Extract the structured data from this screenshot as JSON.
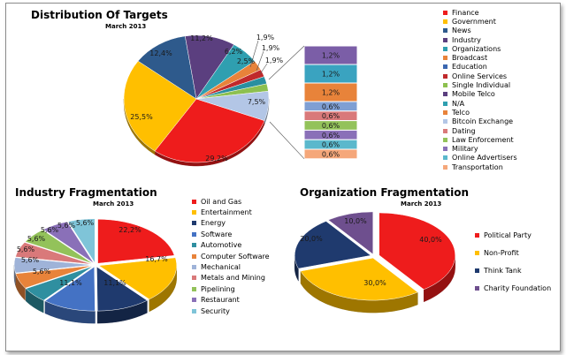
{
  "colors": {
    "red": "#ee1c1c",
    "gold": "#ffbf00",
    "navy": "#1f3a6e",
    "steel": "#4472c4",
    "teal": "#2f9fb0",
    "orange": "#e8833a",
    "lightblue": "#b3c6e6",
    "rose": "#d9797a",
    "green": "#93c25a",
    "purple": "#6e4f8e",
    "sky": "#7fc4d8",
    "blue": "#3b67b0",
    "peach": "#f5a77a"
  },
  "chart_data": [
    {
      "type": "pie",
      "title": "Distribution Of Targets",
      "subtitle": "March 2013",
      "slices": [
        {
          "label": "29,2%",
          "value": 29.2,
          "color": "#ee1c1c"
        },
        {
          "label": "25,5%",
          "value": 25.5,
          "color": "#ffbf00"
        },
        {
          "label": "12,4%",
          "value": 12.4,
          "color": "#2e5a8c"
        },
        {
          "label": "11,2%",
          "value": 11.2,
          "color": "#5b3f7f"
        },
        {
          "label": "6,2%",
          "value": 6.2,
          "color": "#2f9fb0"
        },
        {
          "label": "2,5%",
          "value": 2.5,
          "color": "#e8833a"
        },
        {
          "label": "1,9%",
          "value": 1.9,
          "color": "#c0292b"
        },
        {
          "label": "1,9%",
          "value": 1.9,
          "color": "#2a8fa0"
        },
        {
          "label": "1,9%",
          "value": 1.9,
          "color": "#8dc04f"
        },
        {
          "label": "7,5%",
          "value": 7.5,
          "color": "#b3c6e6"
        }
      ],
      "bar_of_pie": [
        {
          "label": "1,2%",
          "value": 1.2,
          "color": "#7b5ea7"
        },
        {
          "label": "1,2%",
          "value": 1.2,
          "color": "#3aa3c0"
        },
        {
          "label": "1,2%",
          "value": 1.2,
          "color": "#e8833a"
        },
        {
          "label": "0,6%",
          "value": 0.6,
          "color": "#7f9fd3"
        },
        {
          "label": "0,6%",
          "value": 0.6,
          "color": "#d9797a"
        },
        {
          "label": "0,6%",
          "value": 0.6,
          "color": "#93c25a"
        },
        {
          "label": "0,6%",
          "value": 0.6,
          "color": "#8a70b8"
        },
        {
          "label": "0,6%",
          "value": 0.6,
          "color": "#5bb8cc"
        },
        {
          "label": "0,6%",
          "value": 0.6,
          "color": "#f5a77a"
        }
      ],
      "legend": [
        {
          "label": "Finance",
          "color": "#ee1c1c"
        },
        {
          "label": "Government",
          "color": "#ffbf00"
        },
        {
          "label": "News",
          "color": "#2e5a8c"
        },
        {
          "label": "Industry",
          "color": "#5b3f7f"
        },
        {
          "label": "Organizations",
          "color": "#2f9fb0"
        },
        {
          "label": "Broadcast",
          "color": "#e8833a"
        },
        {
          "label": "Education",
          "color": "#3b67b0"
        },
        {
          "label": "Online Services",
          "color": "#c0292b"
        },
        {
          "label": "Single Individual",
          "color": "#8dc04f"
        },
        {
          "label": "Mobile Telco",
          "color": "#5b3f7f"
        },
        {
          "label": "N/A",
          "color": "#2f9fb0"
        },
        {
          "label": "Telco",
          "color": "#e8833a"
        },
        {
          "label": "Bitcoin Exchange",
          "color": "#b3c6e6"
        },
        {
          "label": "Dating",
          "color": "#d9797a"
        },
        {
          "label": "Law Enforcement",
          "color": "#93c25a"
        },
        {
          "label": "Military",
          "color": "#8a70b8"
        },
        {
          "label": "Online Advertisers",
          "color": "#5bb8cc"
        },
        {
          "label": "Transportation",
          "color": "#f5a77a"
        }
      ]
    },
    {
      "type": "pie",
      "title": "Industry Fragmentation",
      "subtitle": "March 2013",
      "slices": [
        {
          "label": "22,2%",
          "value": 22.2,
          "color": "#ee1c1c"
        },
        {
          "label": "16,7%",
          "value": 16.7,
          "color": "#ffbf00"
        },
        {
          "label": "11,1%",
          "value": 11.1,
          "color": "#1f3a6e"
        },
        {
          "label": "11,1%",
          "value": 11.1,
          "color": "#4472c4"
        },
        {
          "label": "5,6%",
          "value": 5.6,
          "color": "#2f8fa0"
        },
        {
          "label": "5,6%",
          "value": 5.6,
          "color": "#e8833a"
        },
        {
          "label": "5,6%",
          "value": 5.6,
          "color": "#9fb3d8"
        },
        {
          "label": "5,6%",
          "value": 5.6,
          "color": "#d9797a"
        },
        {
          "label": "5,6%",
          "value": 5.6,
          "color": "#93c25a"
        },
        {
          "label": "5,6%",
          "value": 5.6,
          "color": "#8a70b8"
        },
        {
          "label": "5,6%",
          "value": 5.6,
          "color": "#7fc4d8"
        }
      ],
      "legend": [
        {
          "label": "Oil and Gas",
          "color": "#ee1c1c"
        },
        {
          "label": "Entertainment",
          "color": "#ffbf00"
        },
        {
          "label": "Energy",
          "color": "#1f3a6e"
        },
        {
          "label": "Software",
          "color": "#4472c4"
        },
        {
          "label": "Automotive",
          "color": "#2f8fa0"
        },
        {
          "label": "Computer Software",
          "color": "#e8833a"
        },
        {
          "label": "Mechanical",
          "color": "#9fb3d8"
        },
        {
          "label": "Metals and Mining",
          "color": "#d9797a"
        },
        {
          "label": "Pipelining",
          "color": "#93c25a"
        },
        {
          "label": "Restaurant",
          "color": "#8a70b8"
        },
        {
          "label": "Security",
          "color": "#7fc4d8"
        }
      ]
    },
    {
      "type": "pie",
      "title": "Organization Fragmentation",
      "subtitle": "March 2013",
      "slices": [
        {
          "label": "40,0%",
          "value": 40.0,
          "color": "#ee1c1c"
        },
        {
          "label": "30,0%",
          "value": 30.0,
          "color": "#ffbf00"
        },
        {
          "label": "20,0%",
          "value": 20.0,
          "color": "#1f3a6e"
        },
        {
          "label": "10,0%",
          "value": 10.0,
          "color": "#6e4f8e"
        }
      ],
      "legend": [
        {
          "label": "Political Party",
          "color": "#ee1c1c"
        },
        {
          "label": "Non-Profit",
          "color": "#ffbf00"
        },
        {
          "label": "Think Tank",
          "color": "#1f3a6e"
        },
        {
          "label": "Charity Foundation",
          "color": "#6e4f8e"
        }
      ]
    }
  ]
}
